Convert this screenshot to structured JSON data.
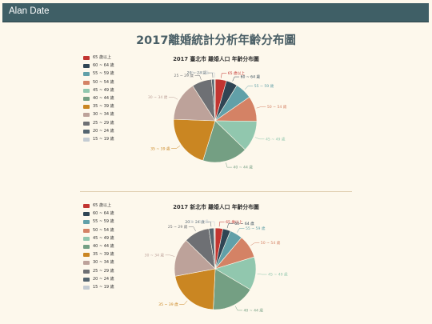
{
  "app": {
    "title": "Alan Date"
  },
  "main_title": "2017離婚統計分析年齡分布圖",
  "legend": [
    {
      "label": "65 歲以上",
      "color": "#c23531"
    },
    {
      "label": "60 ~ 64 歲",
      "color": "#2f4554"
    },
    {
      "label": "55 ~ 59 歲",
      "color": "#61a0a8"
    },
    {
      "label": "50 ~ 54 歲",
      "color": "#d48265"
    },
    {
      "label": "45 ~ 49 歲",
      "color": "#91c7ae"
    },
    {
      "label": "40 ~ 44 歲",
      "color": "#749f83"
    },
    {
      "label": "35 ~ 39 歲",
      "color": "#ca8622"
    },
    {
      "label": "30 ~ 34 歲",
      "color": "#bda29a"
    },
    {
      "label": "25 ~ 29 歲",
      "color": "#6e7074"
    },
    {
      "label": "20 ~ 24 歲",
      "color": "#546570"
    },
    {
      "label": "15 ~ 19 歲",
      "color": "#c4ccd3"
    }
  ],
  "chart_data": [
    {
      "type": "pie",
      "title": "2017 臺北市 離婚人口 年齡分布圖",
      "categories": [
        "65 歲以上",
        "60 ~ 64 歲",
        "55 ~ 59 歲",
        "50 ~ 54 歲",
        "45 ~ 49 歲",
        "40 ~ 44 歲",
        "35 ~ 39 歲",
        "30 ~ 34 歲",
        "25 ~ 29 歲",
        "20 ~ 24 歲",
        "15 ~ 19 歲"
      ],
      "values": [
        4,
        4,
        6,
        9,
        11,
        16,
        19,
        14,
        7,
        1,
        0.3
      ],
      "legend_position": "left"
    },
    {
      "type": "pie",
      "title": "2017 新北市 離婚人口 年齡分布圖",
      "categories": [
        "65 歲以上",
        "60 ~ 64 歲",
        "55 ~ 59 歲",
        "50 ~ 54 歲",
        "45 ~ 49 歲",
        "40 ~ 44 歲",
        "35 ~ 39 歲",
        "30 ~ 34 歲",
        "25 ~ 29 歲",
        "20 ~ 24 歲",
        "15 ~ 19 歲"
      ],
      "values": [
        3,
        3,
        5,
        9,
        13,
        17,
        21,
        15,
        10,
        2,
        0.5
      ],
      "legend_position": "left"
    }
  ]
}
